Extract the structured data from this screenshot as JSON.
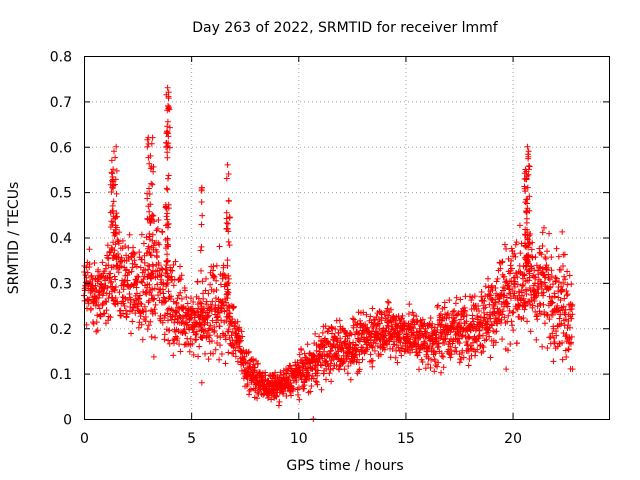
{
  "chart_data": {
    "type": "scatter",
    "title": "Day 263 of 2022, SRMTID for receiver lmmf",
    "xlabel": "GPS time / hours",
    "ylabel": "SRMTID / TECUs",
    "xlim": [
      0,
      24.5
    ],
    "ylim": [
      0,
      0.8
    ],
    "xticks": [
      0,
      5,
      10,
      15,
      20
    ],
    "yticks": [
      0,
      0.1,
      0.2,
      0.3,
      0.4,
      0.5,
      0.6,
      0.7,
      0.8
    ],
    "xtick_labels": [
      "0",
      "5",
      "10",
      "15",
      "20"
    ],
    "ytick_labels": [
      "0",
      "0.1",
      "0.2",
      "0.3",
      "0.4",
      "0.5",
      "0.6",
      "0.7",
      "0.8"
    ],
    "grid": true,
    "marker": "+",
    "color": "#ff0000",
    "series": [
      {
        "name": "SRMTID",
        "profile": {
          "x": [
            0,
            0.5,
            1,
            1.5,
            2,
            2.5,
            3,
            3.5,
            4,
            4.5,
            5,
            5.5,
            6,
            6.5,
            7,
            7.5,
            8,
            8.5,
            9,
            9.5,
            10,
            10.5,
            11,
            11.5,
            12,
            12.5,
            13,
            13.5,
            14,
            14.5,
            15,
            15.5,
            16,
            16.5,
            17,
            17.5,
            18,
            18.5,
            19,
            19.5,
            20,
            20.5,
            21,
            21.5,
            22,
            22.5,
            22.8
          ],
          "median": [
            0.3,
            0.27,
            0.29,
            0.35,
            0.31,
            0.28,
            0.3,
            0.32,
            0.27,
            0.24,
            0.21,
            0.22,
            0.24,
            0.25,
            0.2,
            0.12,
            0.09,
            0.07,
            0.07,
            0.08,
            0.1,
            0.11,
            0.14,
            0.15,
            0.16,
            0.16,
            0.17,
            0.19,
            0.2,
            0.19,
            0.19,
            0.18,
            0.17,
            0.18,
            0.2,
            0.19,
            0.2,
            0.21,
            0.24,
            0.27,
            0.29,
            0.3,
            0.3,
            0.29,
            0.27,
            0.25,
            0.22
          ],
          "spread": [
            0.05,
            0.06,
            0.07,
            0.1,
            0.08,
            0.08,
            0.12,
            0.12,
            0.1,
            0.07,
            0.06,
            0.07,
            0.09,
            0.09,
            0.06,
            0.04,
            0.03,
            0.025,
            0.025,
            0.03,
            0.035,
            0.04,
            0.05,
            0.05,
            0.05,
            0.05,
            0.05,
            0.05,
            0.05,
            0.05,
            0.05,
            0.05,
            0.05,
            0.06,
            0.06,
            0.06,
            0.06,
            0.07,
            0.08,
            0.09,
            0.1,
            0.1,
            0.1,
            0.1,
            0.1,
            0.1,
            0.08
          ]
        },
        "peaks": [
          {
            "x": 1.4,
            "y": 0.59
          },
          {
            "x": 1.5,
            "y": 0.6
          },
          {
            "x": 1.3,
            "y": 0.57
          },
          {
            "x": 3.0,
            "y": 0.62
          },
          {
            "x": 3.2,
            "y": 0.62
          },
          {
            "x": 3.1,
            "y": 0.58
          },
          {
            "x": 3.9,
            "y": 0.73
          },
          {
            "x": 3.95,
            "y": 0.72
          },
          {
            "x": 3.92,
            "y": 0.69
          },
          {
            "x": 3.85,
            "y": 0.63
          },
          {
            "x": 5.5,
            "y": 0.51
          },
          {
            "x": 6.7,
            "y": 0.56
          },
          {
            "x": 6.75,
            "y": 0.54
          },
          {
            "x": 20.7,
            "y": 0.6
          },
          {
            "x": 20.75,
            "y": 0.59
          },
          {
            "x": 20.6,
            "y": 0.55
          },
          {
            "x": 20.65,
            "y": 0.53
          }
        ],
        "lows": [
          {
            "x": 5.5,
            "y": 0.08
          },
          {
            "x": 10.7,
            "y": 0.0
          },
          {
            "x": 22.8,
            "y": 0.11
          },
          {
            "x": 19.7,
            "y": 0.11
          }
        ]
      }
    ]
  }
}
